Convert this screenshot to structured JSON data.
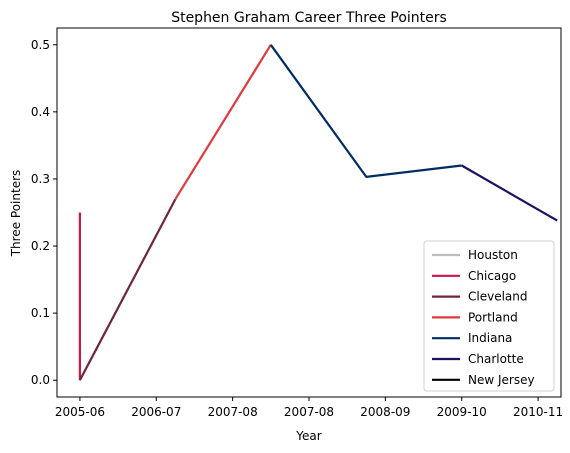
{
  "chart_data": {
    "type": "line",
    "title": "Stephen Graham  Career Three Pointers",
    "xlabel": "Year",
    "ylabel": "Three Pointers",
    "x_ticks": [
      "2005-06",
      "2006-07",
      "2007-08",
      "2007-08",
      "2008-09",
      "2009-10",
      "2010-11"
    ],
    "y_ticks": [
      "0.0",
      "0.1",
      "0.2",
      "0.3",
      "0.4",
      "0.5"
    ],
    "xlim": [
      -0.3,
      6.3
    ],
    "ylim": [
      -0.025,
      0.525
    ],
    "grid": false,
    "legend_position": "lower-right",
    "series": [
      {
        "name": "Houston",
        "color": "#BDBDBD",
        "points": []
      },
      {
        "name": "Chicago",
        "color": "#C8184A",
        "points": [
          [
            0,
            0.25
          ],
          [
            0,
            0.0
          ]
        ]
      },
      {
        "name": "Cleveland",
        "color": "#6F263D",
        "points": [
          [
            0,
            0.0
          ],
          [
            1.25,
            0.27
          ]
        ]
      },
      {
        "name": "Portland",
        "color": "#E03A3E",
        "points": [
          [
            1.25,
            0.27
          ],
          [
            2.5,
            0.5
          ]
        ]
      },
      {
        "name": "Indiana",
        "color": "#002D62",
        "points": [
          [
            2.5,
            0.5
          ],
          [
            3.75,
            0.303
          ],
          [
            5.0,
            0.32
          ]
        ]
      },
      {
        "name": "Charlotte",
        "color": "#1D1160",
        "points": [
          [
            5.0,
            0.32
          ],
          [
            6.25,
            0.238
          ]
        ]
      },
      {
        "name": "New Jersey",
        "color": "#000000",
        "points": []
      }
    ]
  }
}
